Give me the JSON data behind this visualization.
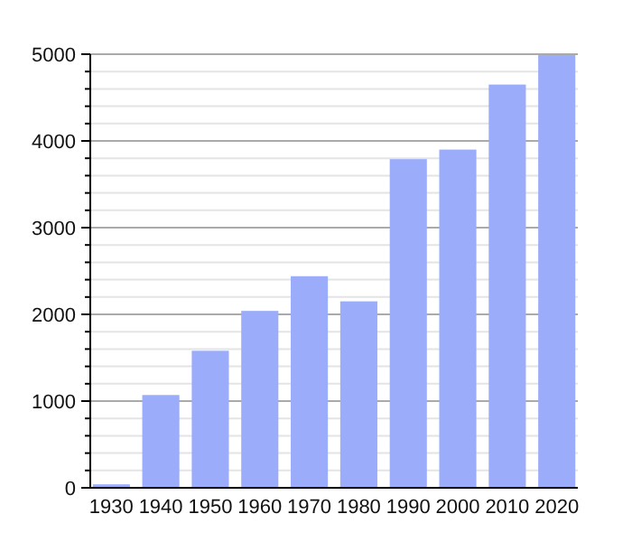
{
  "chart_data": {
    "type": "bar",
    "categories": [
      "1930",
      "1940",
      "1950",
      "1960",
      "1970",
      "1980",
      "1990",
      "2000",
      "2010",
      "2020"
    ],
    "values": [
      40,
      1070,
      1580,
      2040,
      2440,
      2150,
      3790,
      3900,
      4650,
      4990
    ],
    "color": "#9bacfb",
    "ylim": [
      0,
      5000
    ],
    "yticks": [
      0,
      {
        "value": 200,
        "label": null
      },
      {
        "value": 400,
        "label": null
      },
      {
        "value": 600,
        "label": null
      },
      {
        "value": 800,
        "label": null
      },
      1000,
      {
        "value": 1200,
        "label": null
      },
      {
        "value": 1400,
        "label": null
      },
      {
        "value": 1600,
        "label": null
      },
      {
        "value": 1800,
        "label": null
      },
      2000,
      {
        "value": 2200,
        "label": null
      },
      {
        "value": 2400,
        "label": null
      },
      {
        "value": 2600,
        "label": null
      },
      {
        "value": 2800,
        "label": null
      },
      3000,
      {
        "value": 3200,
        "label": null
      },
      {
        "value": 3400,
        "label": null
      },
      {
        "value": 3600,
        "label": null
      },
      {
        "value": 3800,
        "label": null
      },
      4000,
      {
        "value": 4200,
        "label": null
      },
      {
        "value": 4400,
        "label": null
      },
      {
        "value": 4600,
        "label": null
      },
      {
        "value": 4800,
        "label": null
      },
      5000
    ],
    "grid": true
  }
}
